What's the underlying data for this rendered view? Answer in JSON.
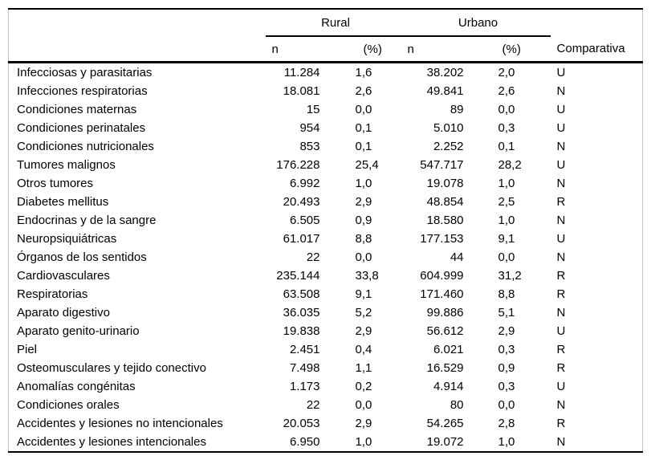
{
  "table": {
    "groups": [
      {
        "label": "Rural"
      },
      {
        "label": "Urbano"
      }
    ],
    "subheaders": {
      "rural_n": "n",
      "rural_pct": "(%)",
      "urbano_n": "n",
      "urbano_pct": "(%)",
      "comparativa": "Comparativa"
    },
    "rows": [
      {
        "label": "Infecciosas y parasitarias",
        "rural_n": "11.284",
        "rural_pct": "1,6",
        "urbano_n": "38.202",
        "urbano_pct": "2,0",
        "comparativa": "U"
      },
      {
        "label": "Infecciones respiratorias",
        "rural_n": "18.081",
        "rural_pct": "2,6",
        "urbano_n": "49.841",
        "urbano_pct": "2,6",
        "comparativa": "N"
      },
      {
        "label": "Condiciones maternas",
        "rural_n": "15",
        "rural_pct": "0,0",
        "urbano_n": "89",
        "urbano_pct": "0,0",
        "comparativa": "U"
      },
      {
        "label": "Condiciones perinatales",
        "rural_n": "954",
        "rural_pct": "0,1",
        "urbano_n": "5.010",
        "urbano_pct": "0,3",
        "comparativa": "U"
      },
      {
        "label": "Condiciones nutricionales",
        "rural_n": "853",
        "rural_pct": "0,1",
        "urbano_n": "2.252",
        "urbano_pct": "0,1",
        "comparativa": "N"
      },
      {
        "label": "Tumores malignos",
        "rural_n": "176.228",
        "rural_pct": "25,4",
        "urbano_n": "547.717",
        "urbano_pct": "28,2",
        "comparativa": "U"
      },
      {
        "label": "Otros tumores",
        "rural_n": "6.992",
        "rural_pct": "1,0",
        "urbano_n": "19.078",
        "urbano_pct": "1,0",
        "comparativa": "N"
      },
      {
        "label": "Diabetes mellitus",
        "rural_n": "20.493",
        "rural_pct": "2,9",
        "urbano_n": "48.854",
        "urbano_pct": "2,5",
        "comparativa": "R"
      },
      {
        "label": "Endocrinas y de la sangre",
        "rural_n": "6.505",
        "rural_pct": "0,9",
        "urbano_n": "18.580",
        "urbano_pct": "1,0",
        "comparativa": "N"
      },
      {
        "label": "Neuropsiquiátricas",
        "rural_n": "61.017",
        "rural_pct": "8,8",
        "urbano_n": "177.153",
        "urbano_pct": "9,1",
        "comparativa": "U"
      },
      {
        "label": "Órganos de los sentidos",
        "rural_n": "22",
        "rural_pct": "0,0",
        "urbano_n": "44",
        "urbano_pct": "0,0",
        "comparativa": "N"
      },
      {
        "label": "Cardiovasculares",
        "rural_n": "235.144",
        "rural_pct": "33,8",
        "urbano_n": "604.999",
        "urbano_pct": "31,2",
        "comparativa": "R"
      },
      {
        "label": "Respiratorias",
        "rural_n": "63.508",
        "rural_pct": "9,1",
        "urbano_n": "171.460",
        "urbano_pct": "8,8",
        "comparativa": "R"
      },
      {
        "label": "Aparato digestivo",
        "rural_n": "36.035",
        "rural_pct": "5,2",
        "urbano_n": "99.886",
        "urbano_pct": "5,1",
        "comparativa": "N"
      },
      {
        "label": "Aparato genito-urinario",
        "rural_n": "19.838",
        "rural_pct": "2,9",
        "urbano_n": "56.612",
        "urbano_pct": "2,9",
        "comparativa": "U"
      },
      {
        "label": "Piel",
        "rural_n": "2.451",
        "rural_pct": "0,4",
        "urbano_n": "6.021",
        "urbano_pct": "0,3",
        "comparativa": "R"
      },
      {
        "label": "Osteomusculares y tejido conectivo",
        "rural_n": "7.498",
        "rural_pct": "1,1",
        "urbano_n": "16.529",
        "urbano_pct": "0,9",
        "comparativa": "R"
      },
      {
        "label": "Anomalías congénitas",
        "rural_n": "1.173",
        "rural_pct": "0,2",
        "urbano_n": "4.914",
        "urbano_pct": "0,3",
        "comparativa": "U"
      },
      {
        "label": "Condiciones orales",
        "rural_n": "22",
        "rural_pct": "0,0",
        "urbano_n": "80",
        "urbano_pct": "0,0",
        "comparativa": "N"
      },
      {
        "label": "Accidentes y lesiones no intencionales",
        "rural_n": "20.053",
        "rural_pct": "2,9",
        "urbano_n": "54.265",
        "urbano_pct": "2,8",
        "comparativa": "R"
      },
      {
        "label": "Accidentes y lesiones intencionales",
        "rural_n": "6.950",
        "rural_pct": "1,0",
        "urbano_n": "19.072",
        "urbano_pct": "1,0",
        "comparativa": "N"
      }
    ]
  },
  "colors": {
    "rule": "#000000",
    "side_border": "#c4c4c4",
    "text": "#000000",
    "background": "#ffffff"
  }
}
